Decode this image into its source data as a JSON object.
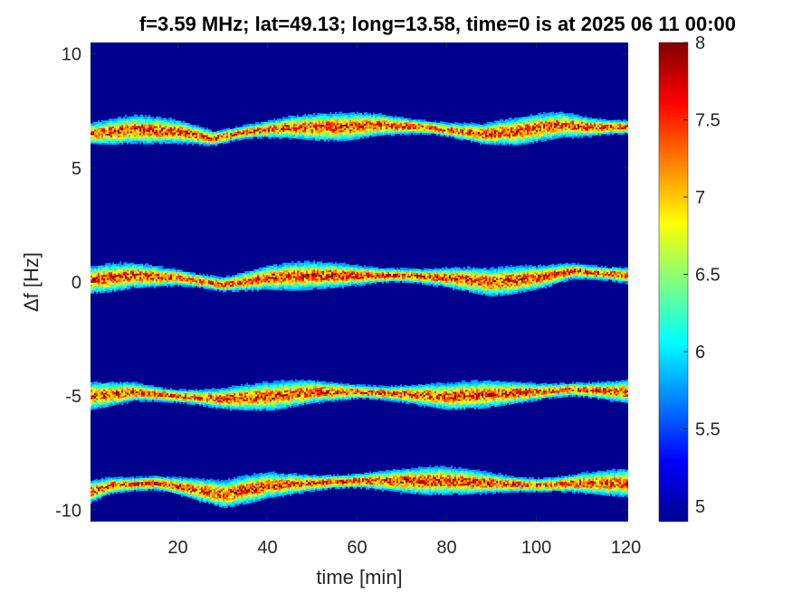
{
  "chart_data": {
    "type": "heatmap",
    "title": "f=3.59 MHz;  lat=49.13; long=13.58, time=0 is at 2025 06 11 00:00",
    "xlabel": "time [min]",
    "ylabel": "Δf [Hz]",
    "xlim": [
      0.5,
      120.5
    ],
    "ylim": [
      -10.5,
      10.5
    ],
    "x_ticks": [
      "20",
      "40",
      "60",
      "80",
      "100",
      "120"
    ],
    "y_ticks": [
      "10",
      "5",
      "0",
      "-5",
      "-10"
    ],
    "colorbar": {
      "range": [
        4.9,
        8
      ],
      "ticks": [
        "8",
        "7.5",
        "7",
        "6.5",
        "6",
        "5.5",
        "5"
      ],
      "colormap": "jet"
    },
    "background_color": "#00008f",
    "bands": [
      {
        "name": "",
        "center_hz": 6.6,
        "profile_t": [
          0,
          10,
          20,
          28,
          35,
          45,
          55,
          65,
          75,
          88,
          95,
          105,
          112,
          120
        ],
        "profile_df": [
          6.5,
          6.7,
          6.6,
          6.3,
          6.6,
          6.8,
          6.8,
          6.9,
          6.8,
          6.5,
          6.6,
          6.9,
          6.8,
          6.8
        ]
      },
      {
        "name": "",
        "center_hz": 0.2,
        "profile_t": [
          0,
          10,
          20,
          30,
          40,
          50,
          60,
          70,
          80,
          90,
          100,
          108,
          120
        ],
        "profile_df": [
          0.1,
          0.3,
          0.2,
          -0.1,
          0.2,
          0.3,
          0.3,
          0.3,
          0.2,
          0.0,
          0.2,
          0.5,
          0.3
        ]
      },
      {
        "name": "",
        "center_hz": -4.9,
        "profile_t": [
          0,
          10,
          20,
          30,
          40,
          50,
          60,
          70,
          80,
          90,
          100,
          108,
          120
        ],
        "profile_df": [
          -5.0,
          -4.8,
          -5.0,
          -5.1,
          -5.0,
          -4.8,
          -4.8,
          -4.9,
          -5.0,
          -4.9,
          -4.8,
          -4.7,
          -4.8
        ]
      },
      {
        "name": "",
        "center_hz": -8.9,
        "profile_t": [
          0,
          5,
          15,
          22,
          30,
          40,
          50,
          60,
          70,
          80,
          90,
          100,
          110,
          120
        ],
        "profile_df": [
          -9.2,
          -8.9,
          -8.8,
          -9.0,
          -9.3,
          -8.9,
          -8.8,
          -8.7,
          -8.7,
          -8.7,
          -8.8,
          -8.9,
          -8.8,
          -8.8
        ]
      }
    ]
  }
}
